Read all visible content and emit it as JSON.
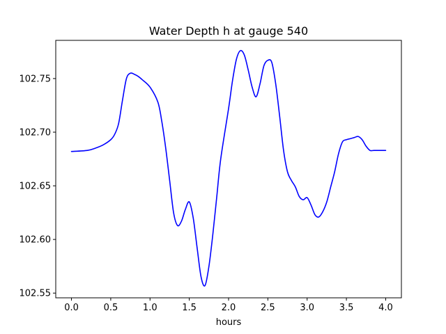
{
  "chart_data": {
    "type": "line",
    "title": "Water Depth h at gauge 540",
    "xlabel": "hours",
    "ylabel": "",
    "xlim": [
      -0.2,
      4.2
    ],
    "ylim": [
      102.5456,
      102.7856
    ],
    "x_ticks": [
      0.0,
      0.5,
      1.0,
      1.5,
      2.0,
      2.5,
      3.0,
      3.5,
      4.0
    ],
    "x_tick_labels": [
      "0.0",
      "0.5",
      "1.0",
      "1.5",
      "2.0",
      "2.5",
      "3.0",
      "3.5",
      "4.0"
    ],
    "y_ticks": [
      102.55,
      102.6,
      102.65,
      102.7,
      102.75
    ],
    "y_tick_labels": [
      "102.55",
      "102.60",
      "102.65",
      "102.70",
      "102.75"
    ],
    "grid": false,
    "series": [
      {
        "color": "#0000ff",
        "x": [
          0.0,
          0.2,
          0.3,
          0.4,
          0.5,
          0.55,
          0.6,
          0.65,
          0.7,
          0.75,
          0.8,
          0.85,
          0.9,
          1.0,
          1.1,
          1.15,
          1.2,
          1.25,
          1.3,
          1.35,
          1.4,
          1.45,
          1.5,
          1.55,
          1.6,
          1.65,
          1.7,
          1.75,
          1.8,
          1.85,
          1.9,
          2.0,
          2.05,
          2.1,
          2.15,
          2.2,
          2.25,
          2.3,
          2.35,
          2.4,
          2.45,
          2.5,
          2.55,
          2.6,
          2.65,
          2.7,
          2.75,
          2.8,
          2.85,
          2.9,
          2.95,
          3.0,
          3.05,
          3.1,
          3.15,
          3.2,
          3.25,
          3.3,
          3.35,
          3.4,
          3.45,
          3.5,
          3.55,
          3.6,
          3.65,
          3.7,
          3.75,
          3.8,
          3.85,
          3.9,
          3.95,
          4.0
        ],
        "y": [
          102.682,
          102.683,
          102.685,
          102.688,
          102.693,
          102.698,
          102.708,
          102.73,
          102.75,
          102.755,
          102.754,
          102.752,
          102.749,
          102.742,
          102.728,
          102.71,
          102.685,
          102.655,
          102.625,
          102.613,
          102.617,
          102.628,
          102.635,
          102.62,
          102.592,
          102.565,
          102.557,
          102.575,
          102.605,
          102.64,
          102.675,
          102.722,
          102.748,
          102.768,
          102.776,
          102.772,
          102.758,
          102.742,
          102.733,
          102.745,
          102.762,
          102.767,
          102.765,
          102.745,
          102.715,
          102.683,
          102.663,
          102.655,
          102.649,
          102.64,
          102.637,
          102.639,
          102.632,
          102.623,
          102.621,
          102.626,
          102.635,
          102.649,
          102.663,
          102.68,
          102.691,
          102.693,
          102.694,
          102.695,
          102.696,
          102.693,
          102.687,
          102.683,
          102.683,
          102.683,
          102.683,
          102.683
        ]
      }
    ]
  }
}
